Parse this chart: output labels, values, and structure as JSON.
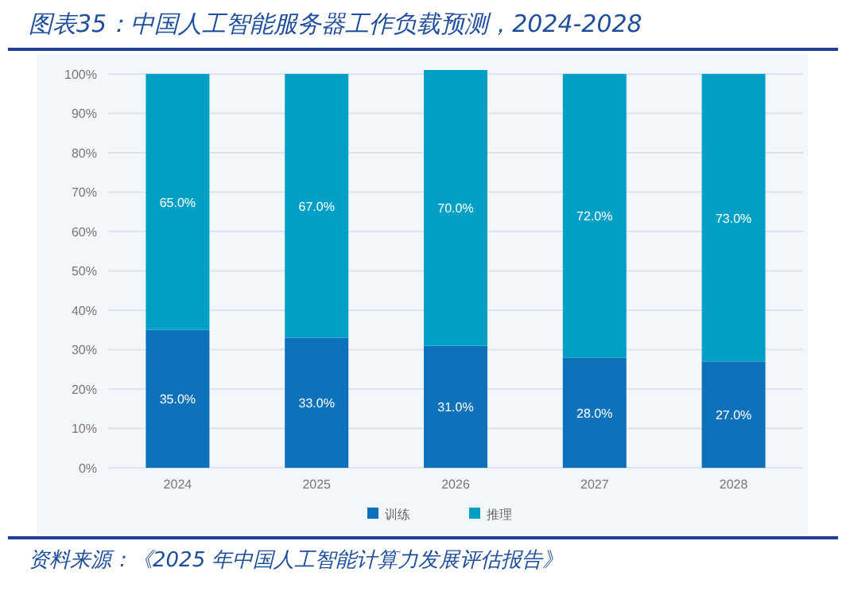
{
  "chart_data": {
    "type": "bar",
    "stacked": true,
    "title": "图表35：中国人工智能服务器工作负载预测，2024-2028",
    "categories": [
      "2024",
      "2025",
      "2026",
      "2027",
      "2028"
    ],
    "series": [
      {
        "name": "训练",
        "color": "#0e72bb",
        "values": [
          35,
          33,
          31,
          28,
          27
        ],
        "value_labels": [
          "35.0%",
          "33.0%",
          "31.0%",
          "28.0%",
          "27.0%"
        ]
      },
      {
        "name": "推理",
        "color": "#00a0c6",
        "values": [
          65,
          67,
          70,
          72,
          73
        ],
        "value_labels": [
          "65.0%",
          "67.0%",
          "70.0%",
          "72.0%",
          "73.0%"
        ]
      }
    ],
    "ylim": [
      0,
      101
    ],
    "yticks": [
      {
        "value": 0,
        "label": "0%"
      },
      {
        "value": 10,
        "label": "10%"
      },
      {
        "value": 20,
        "label": "20%"
      },
      {
        "value": 30,
        "label": "30%"
      },
      {
        "value": 40,
        "label": "40%"
      },
      {
        "value": 50,
        "label": "50%"
      },
      {
        "value": 60,
        "label": "60%"
      },
      {
        "value": 70,
        "label": "70%"
      },
      {
        "value": 80,
        "label": "80%"
      },
      {
        "value": 90,
        "label": "90%"
      },
      {
        "value": 100,
        "label": "100%"
      }
    ],
    "grid": "y",
    "legend": "bottom",
    "annotations": [
      "资料来源：《2025 年中国人工智能计算力发展评估报告》"
    ]
  }
}
